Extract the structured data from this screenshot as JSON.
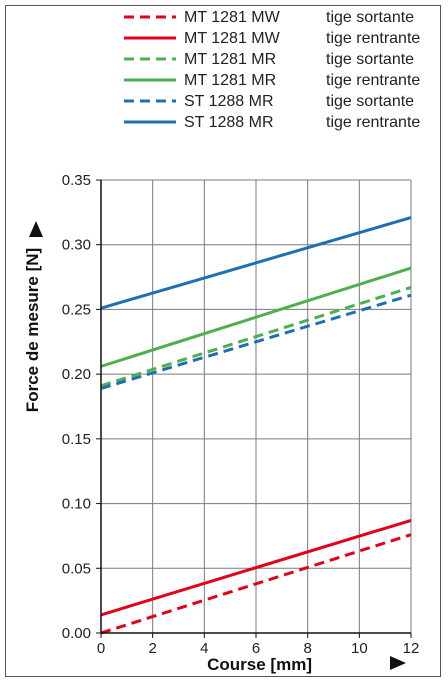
{
  "chart_data": {
    "type": "line",
    "xlabel": "Course [mm]",
    "ylabel": "Force de mesure [N]",
    "xlim": [
      0,
      12
    ],
    "ylim": [
      0,
      0.35
    ],
    "x_ticks": [
      "0",
      "2",
      "4",
      "6",
      "8",
      "10",
      "12"
    ],
    "y_ticks": [
      "0.00",
      "0.05",
      "0.10",
      "0.15",
      "0.20",
      "0.25",
      "0.30",
      "0.35"
    ],
    "grid": true,
    "legend_position": "top",
    "series": [
      {
        "model": "MT 1281 MW",
        "direction": "tige sortante",
        "color": "#e2001a",
        "style": "dashed",
        "x": [
          0,
          12
        ],
        "y": [
          0.0,
          0.076
        ]
      },
      {
        "model": "MT 1281 MW",
        "direction": "tige rentrante",
        "color": "#e2001a",
        "style": "solid",
        "x": [
          0,
          12
        ],
        "y": [
          0.014,
          0.087
        ]
      },
      {
        "model": "MT 1281 MR",
        "direction": "tige sortante",
        "color": "#4caf50",
        "style": "dashed",
        "x": [
          0,
          12
        ],
        "y": [
          0.191,
          0.267
        ]
      },
      {
        "model": "MT 1281 MR",
        "direction": "tige rentrante",
        "color": "#4caf50",
        "style": "solid",
        "x": [
          0,
          12
        ],
        "y": [
          0.206,
          0.282
        ]
      },
      {
        "model": "ST 1288 MR",
        "direction": "tige sortante",
        "color": "#1f6fb4",
        "style": "dashed",
        "x": [
          0,
          12
        ],
        "y": [
          0.189,
          0.261
        ]
      },
      {
        "model": "ST 1288 MR",
        "direction": "tige rentrante",
        "color": "#1f6fb4",
        "style": "solid",
        "x": [
          0,
          12
        ],
        "y": [
          0.251,
          0.321
        ]
      }
    ]
  }
}
